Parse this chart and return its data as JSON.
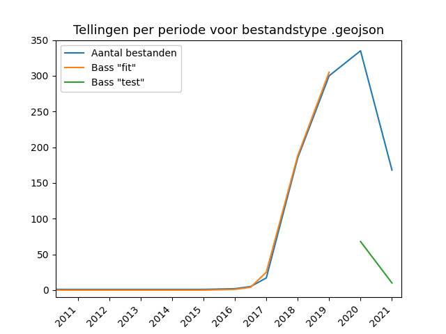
{
  "title": "Tellingen per periode voor bestandstype .geojson",
  "blue_label": "Aantal bestanden",
  "orange_label": "Bass \"fit\"",
  "green_label": "Bass \"test\"",
  "blue_x": [
    2010,
    2011,
    2012,
    2013,
    2014,
    2015,
    2016,
    2016.5,
    2017,
    2018,
    2019,
    2020,
    2021
  ],
  "blue_y": [
    1,
    1,
    1,
    1,
    1,
    1,
    2,
    5,
    17,
    185,
    300,
    335,
    168
  ],
  "orange_x": [
    2010,
    2011,
    2012,
    2013,
    2014,
    2015,
    2016,
    2016.5,
    2017,
    2018,
    2019
  ],
  "orange_y": [
    0,
    0,
    0,
    0,
    0,
    0,
    1,
    4,
    25,
    188,
    305
  ],
  "green_x": [
    2020,
    2021
  ],
  "green_y": [
    68,
    10
  ],
  "ylim": [
    -10,
    350
  ],
  "xlim": [
    2010.3,
    2021.3
  ],
  "xticks": [
    2011,
    2012,
    2013,
    2014,
    2015,
    2016,
    2017,
    2018,
    2019,
    2020,
    2021
  ],
  "yticks": [
    0,
    50,
    100,
    150,
    200,
    250,
    300,
    350
  ],
  "blue_color": "#1f77b4",
  "orange_color": "#ff7f0e",
  "green_color": "#2ca02c",
  "linewidth": 1.5,
  "legend_loc": "upper left",
  "title_fontsize": 13,
  "tick_fontsize": 10,
  "legend_fontsize": 10
}
